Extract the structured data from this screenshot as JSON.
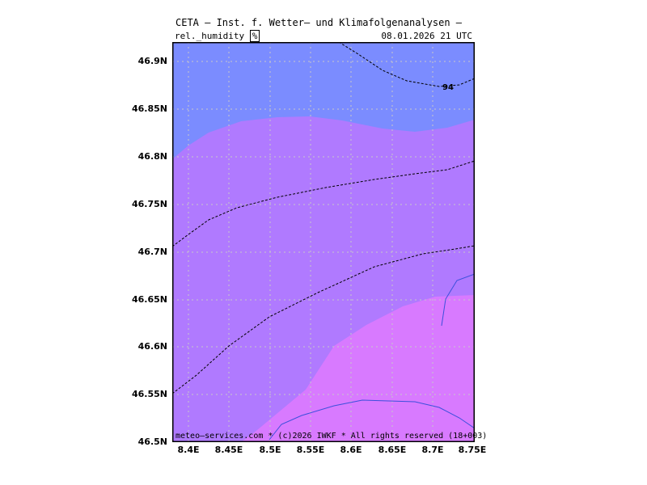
{
  "header": {
    "title": "CETA — Inst. f. Wetter— und Klimafolgenanalysen —",
    "parameter": "rel._humidity",
    "unit": "%",
    "datetime": "08.01.2026  21 UTC"
  },
  "footer": {
    "copyright": "meteo—services.com * (c)2026 IWKF * All rights reserved (18+003)"
  },
  "axes": {
    "y_labels": [
      "46.9N",
      "46.85N",
      "46.8N",
      "46.75N",
      "46.7N",
      "46.65N",
      "46.6N",
      "46.55N",
      "46.5N"
    ],
    "x_labels": [
      "8.4E",
      "8.45E",
      "8.5E",
      "8.55E",
      "8.6E",
      "8.65E",
      "8.7E",
      "8.75E"
    ]
  },
  "contours": {
    "label_94": "94"
  },
  "colors": {
    "band_blue": "#7b8cff",
    "band_violet": "#b07aff",
    "band_pink": "#d87aff",
    "contour": "#000000",
    "coastline": "#3c50dc",
    "grid": "#c8c8c8"
  }
}
